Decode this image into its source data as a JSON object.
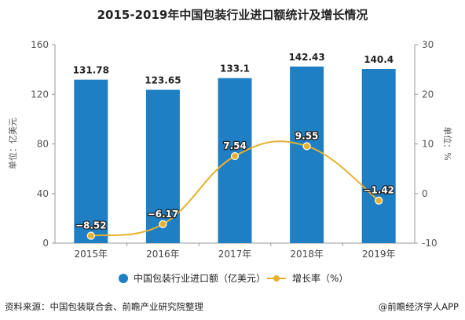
{
  "chart_data": {
    "type": "bar",
    "title": "2015-2019年中国包装行业进口额统计及增长情况",
    "categories": [
      "2015年",
      "2016年",
      "2017年",
      "2018年",
      "2019年"
    ],
    "series": [
      {
        "name": "中国包装行业进口额（亿美元）",
        "type": "bar",
        "axis": "left",
        "values": [
          131.78,
          123.65,
          133.1,
          142.43,
          140.4
        ]
      },
      {
        "name": "增长率（%）",
        "type": "line",
        "axis": "right",
        "values": [
          -8.52,
          -6.17,
          7.54,
          9.55,
          -1.42
        ]
      }
    ],
    "ylabel_left": "单位：亿美元",
    "ylabel_right": "单位：%",
    "ylim_left": [
      0,
      160
    ],
    "ylim_right": [
      -10,
      30
    ],
    "yticks_left": [
      0,
      40,
      80,
      120,
      160
    ],
    "yticks_right": [
      -10,
      0,
      10,
      20,
      30
    ],
    "bar_color": "#1f7fc4",
    "line_color": "#e6b12f",
    "grid": false,
    "legend_position": "bottom"
  },
  "footer": {
    "source": "资料来源：中国包装联合会、前瞻产业研究院整理",
    "brand": "@前瞻经济学人APP"
  }
}
